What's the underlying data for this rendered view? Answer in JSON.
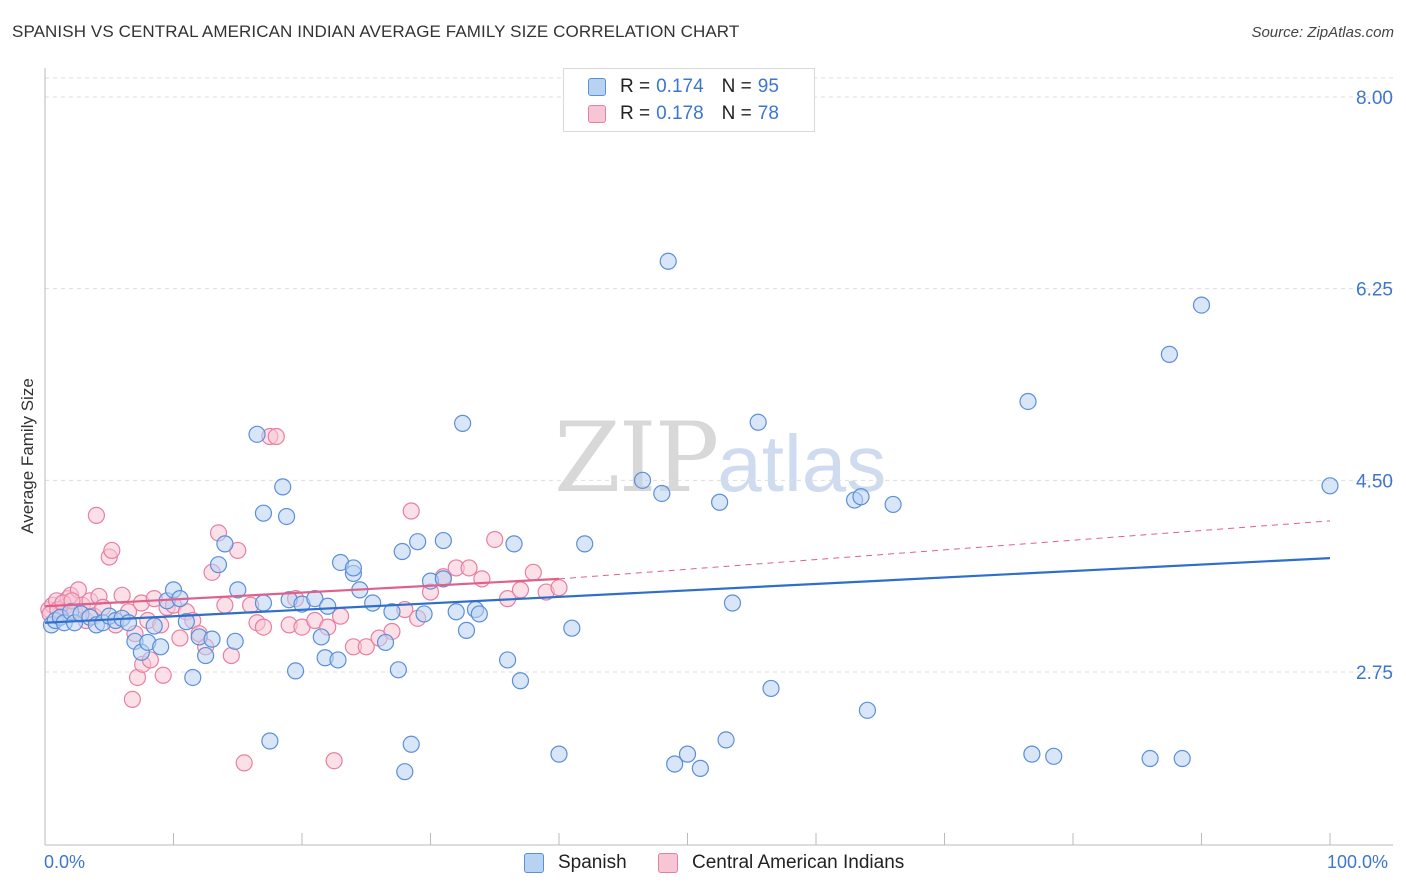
{
  "title": "SPANISH VS CENTRAL AMERICAN INDIAN AVERAGE FAMILY SIZE CORRELATION CHART",
  "source": "Source: ZipAtlas.com",
  "watermark": {
    "zip": "ZIP",
    "atlas": "atlas"
  },
  "legend": {
    "rows": [
      {
        "r_label": "R =",
        "r_value": "0.174",
        "n_label": "N =",
        "n_value": "95"
      },
      {
        "r_label": "R =",
        "r_value": "0.178",
        "n_label": "N =",
        "n_value": "78"
      }
    ]
  },
  "bottom_legend": {
    "series1": "Spanish",
    "series2": "Central American Indians"
  },
  "colors": {
    "spanish_fill": "#b8d2f2",
    "spanish_stroke": "#5b8fd9",
    "spanish_line": "#2e6fcb",
    "cai_fill": "#f7c6d5",
    "cai_stroke": "#e87fa2",
    "cai_line": "#e0608c",
    "axis_text": "#3d76cc",
    "grid": "#dddddd"
  },
  "chart_data": {
    "type": "scatter",
    "title": "SPANISH VS CENTRAL AMERICAN INDIAN AVERAGE FAMILY SIZE CORRELATION CHART",
    "xlabel": "",
    "ylabel": "Average Family Size",
    "xlim": [
      0,
      100
    ],
    "ylim": [
      1.6,
      8.2
    ],
    "x_tick_labels": [
      "0.0%",
      "100.0%"
    ],
    "y_ticks": [
      2.75,
      4.5,
      6.25,
      8.0
    ],
    "y_tick_labels": [
      "2.75",
      "4.50",
      "6.25",
      "8.00"
    ],
    "grid": "horizontal dashed",
    "legend_position": "top-center",
    "series": [
      {
        "name": "Spanish",
        "trend": {
          "x": [
            0,
            100
          ],
          "y": [
            3.2,
            3.79
          ],
          "style": "solid"
        },
        "points": [
          [
            0.5,
            3.18
          ],
          [
            0.8,
            3.22
          ],
          [
            1.2,
            3.25
          ],
          [
            1.5,
            3.2
          ],
          [
            2,
            3.3
          ],
          [
            2.3,
            3.2
          ],
          [
            2.8,
            3.28
          ],
          [
            3.5,
            3.25
          ],
          [
            4,
            3.18
          ],
          [
            4.5,
            3.2
          ],
          [
            5,
            3.26
          ],
          [
            5.5,
            3.22
          ],
          [
            6,
            3.24
          ],
          [
            6.5,
            3.2
          ],
          [
            7,
            3.03
          ],
          [
            7.5,
            2.93
          ],
          [
            8,
            3.02
          ],
          [
            8.5,
            3.17
          ],
          [
            9,
            2.98
          ],
          [
            9.5,
            3.4
          ],
          [
            10,
            3.5
          ],
          [
            10.5,
            3.42
          ],
          [
            11,
            3.21
          ],
          [
            11.5,
            2.7
          ],
          [
            12,
            3.07
          ],
          [
            12.5,
            2.9
          ],
          [
            13,
            3.05
          ],
          [
            13.5,
            3.73
          ],
          [
            14,
            3.92
          ],
          [
            14.8,
            3.03
          ],
          [
            15,
            3.5
          ],
          [
            16.5,
            4.92
          ],
          [
            17,
            4.2
          ],
          [
            17,
            3.38
          ],
          [
            17.5,
            2.12
          ],
          [
            18.5,
            4.44
          ],
          [
            18.8,
            4.17
          ],
          [
            19,
            3.41
          ],
          [
            19.5,
            2.76
          ],
          [
            20,
            3.37
          ],
          [
            21,
            3.42
          ],
          [
            21.5,
            3.07
          ],
          [
            21.8,
            2.88
          ],
          [
            22,
            3.35
          ],
          [
            22.8,
            2.86
          ],
          [
            23,
            3.75
          ],
          [
            24,
            3.65
          ],
          [
            24,
            3.7
          ],
          [
            24.5,
            3.5
          ],
          [
            25.5,
            3.38
          ],
          [
            26.5,
            3.02
          ],
          [
            27,
            3.3
          ],
          [
            27.5,
            2.77
          ],
          [
            27.8,
            3.85
          ],
          [
            28,
            1.84
          ],
          [
            28.5,
            2.09
          ],
          [
            29,
            3.94
          ],
          [
            29.5,
            3.28
          ],
          [
            30,
            3.58
          ],
          [
            31,
            3.95
          ],
          [
            31,
            3.6
          ],
          [
            32,
            3.3
          ],
          [
            32.5,
            5.02
          ],
          [
            32.8,
            3.13
          ],
          [
            33.5,
            3.32
          ],
          [
            33.8,
            3.28
          ],
          [
            36,
            2.86
          ],
          [
            37,
            2.67
          ],
          [
            40,
            2.0
          ],
          [
            41,
            3.15
          ],
          [
            42,
            3.92
          ],
          [
            46.5,
            4.5
          ],
          [
            48,
            4.38
          ],
          [
            48.5,
            6.5
          ],
          [
            49,
            1.91
          ],
          [
            50,
            2.0
          ],
          [
            51,
            1.87
          ],
          [
            52.5,
            4.3
          ],
          [
            53,
            2.13
          ],
          [
            53.5,
            3.38
          ],
          [
            55.5,
            5.03
          ],
          [
            56.5,
            2.6
          ],
          [
            63,
            4.32
          ],
          [
            63.5,
            4.35
          ],
          [
            64,
            2.4
          ],
          [
            66,
            4.28
          ],
          [
            76.5,
            5.22
          ],
          [
            76.8,
            2.0
          ],
          [
            78.5,
            1.98
          ],
          [
            86,
            1.96
          ],
          [
            87.5,
            5.65
          ],
          [
            88.5,
            1.96
          ],
          [
            90,
            6.1
          ],
          [
            100,
            4.45
          ],
          [
            36.5,
            3.92
          ]
        ]
      },
      {
        "name": "Central American Indians",
        "trend": {
          "x": [
            0,
            40,
            100
          ],
          "y": [
            3.35,
            3.6,
            4.13
          ],
          "style": "solid-then-dashed",
          "solid_until": 40
        },
        "points": [
          [
            0.3,
            3.32
          ],
          [
            0.6,
            3.36
          ],
          [
            0.9,
            3.4
          ],
          [
            1.2,
            3.28
          ],
          [
            1.5,
            3.34
          ],
          [
            1.8,
            3.42
          ],
          [
            2,
            3.45
          ],
          [
            2.3,
            3.3
          ],
          [
            2.6,
            3.5
          ],
          [
            2.9,
            3.36
          ],
          [
            3.2,
            3.22
          ],
          [
            3.5,
            3.4
          ],
          [
            3.8,
            3.26
          ],
          [
            4.2,
            3.44
          ],
          [
            4.5,
            3.34
          ],
          [
            5,
            3.8
          ],
          [
            5.5,
            3.18
          ],
          [
            6,
            3.45
          ],
          [
            6.5,
            3.3
          ],
          [
            7,
            3.1
          ],
          [
            7.5,
            3.38
          ],
          [
            8,
            3.22
          ],
          [
            8.5,
            3.42
          ],
          [
            9,
            3.18
          ],
          [
            9.5,
            3.34
          ],
          [
            10,
            3.36
          ],
          [
            10.5,
            3.06
          ],
          [
            11,
            3.3
          ],
          [
            11.5,
            3.22
          ],
          [
            12,
            3.1
          ],
          [
            12.5,
            2.98
          ],
          [
            13,
            3.66
          ],
          [
            13.5,
            4.02
          ],
          [
            14,
            3.36
          ],
          [
            14.5,
            2.9
          ],
          [
            15,
            3.86
          ],
          [
            16,
            3.36
          ],
          [
            16.5,
            3.2
          ],
          [
            17,
            3.16
          ],
          [
            17.5,
            4.9
          ],
          [
            18,
            4.9
          ],
          [
            19,
            3.18
          ],
          [
            19.5,
            3.42
          ],
          [
            20,
            3.16
          ],
          [
            21,
            3.22
          ],
          [
            22,
            3.16
          ],
          [
            23,
            3.26
          ],
          [
            24,
            2.98
          ],
          [
            25,
            2.98
          ],
          [
            26,
            3.06
          ],
          [
            27,
            3.12
          ],
          [
            28,
            3.32
          ],
          [
            29,
            3.24
          ],
          [
            30,
            3.48
          ],
          [
            31,
            3.62
          ],
          [
            32,
            3.7
          ],
          [
            33,
            3.7
          ],
          [
            34,
            3.6
          ],
          [
            35,
            3.96
          ],
          [
            36,
            3.42
          ],
          [
            37,
            3.5
          ],
          [
            38,
            3.66
          ],
          [
            39,
            3.48
          ],
          [
            40,
            3.52
          ],
          [
            0.4,
            3.28
          ],
          [
            1,
            3.32
          ],
          [
            1.4,
            3.38
          ],
          [
            2.1,
            3.4
          ],
          [
            4,
            4.18
          ],
          [
            5.2,
            3.86
          ],
          [
            6.8,
            2.5
          ],
          [
            7.2,
            2.7
          ],
          [
            7.6,
            2.82
          ],
          [
            8.2,
            2.86
          ],
          [
            9.2,
            2.72
          ],
          [
            15.5,
            1.92
          ],
          [
            22.5,
            1.94
          ],
          [
            28.5,
            4.22
          ]
        ]
      }
    ]
  }
}
